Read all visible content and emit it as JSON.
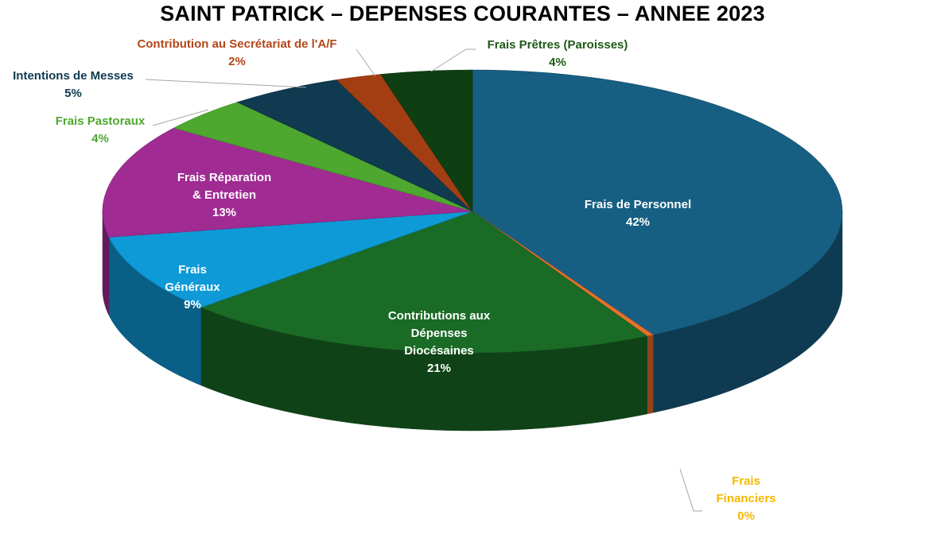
{
  "chart_data": {
    "type": "pie",
    "title": "SAINT PATRICK – DEPENSES COURANTES – ANNEE 2023",
    "slices": [
      {
        "label": "Frais de Personnel",
        "lines": [
          "Frais de Personnel"
        ],
        "value": 42,
        "value_label": "42%",
        "color": "#175f82",
        "label_color": "#ffffff"
      },
      {
        "label": "Frais Financiers",
        "lines": [
          "Frais",
          "Financiers"
        ],
        "value": 0.3,
        "value_label": "0%",
        "color": "#e8702a",
        "label_color": "#f5b800"
      },
      {
        "label": "Contributions aux Dépenses Diocésaines",
        "lines": [
          "Contributions aux",
          "Dépenses",
          "Diocésaines"
        ],
        "value": 21,
        "value_label": "21%",
        "color": "#1a6b26",
        "label_color": "#ffffff"
      },
      {
        "label": "Frais Généraux",
        "lines": [
          "Frais",
          "Généraux"
        ],
        "value": 9,
        "value_label": "9%",
        "color": "#0e9ad7",
        "label_color": "#ffffff"
      },
      {
        "label": "Frais Réparation & Entretien",
        "lines": [
          "Frais Réparation",
          "& Entretien"
        ],
        "value": 13,
        "value_label": "13%",
        "color": "#a02b93",
        "label_color": "#ffffff"
      },
      {
        "label": "Frais Pastoraux",
        "lines": [
          "Frais Pastoraux"
        ],
        "value": 4,
        "value_label": "4%",
        "color": "#4ea72e",
        "label_color": "#4ea72e"
      },
      {
        "label": "Intentions de Messes",
        "lines": [
          "Intentions de Messes"
        ],
        "value": 5,
        "value_label": "5%",
        "color": "#0f3a4f",
        "label_color": "#0f3a4f"
      },
      {
        "label": "Contribution au Secrétariat de l'A/F",
        "lines": [
          "Contribution au Secrétariat de l'A/F"
        ],
        "value": 2,
        "value_label": "2%",
        "color": "#a33e12",
        "label_color": "#b5461a"
      },
      {
        "label": "Frais Prêtres (Paroisses)",
        "lines": [
          "Frais Prêtres (Paroisses)"
        ],
        "value": 4,
        "value_label": "4%",
        "color": "#0e3e12",
        "label_color": "#1e5a16"
      }
    ],
    "legend": "none",
    "style": "3d-exploded-none"
  }
}
